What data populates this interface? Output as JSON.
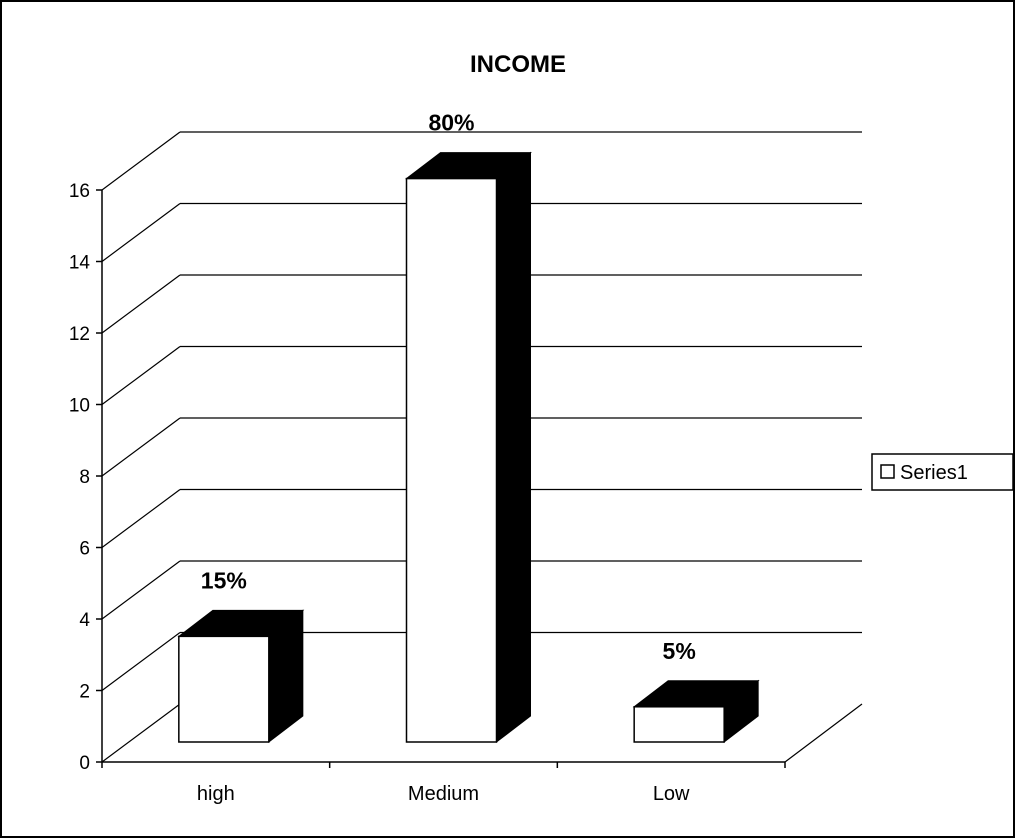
{
  "chart_data": {
    "type": "bar",
    "title": "INCOME",
    "categories": [
      "high",
      "Medium",
      "Low"
    ],
    "series": [
      {
        "name": "Series1",
        "values": [
          3,
          16,
          1
        ],
        "data_labels": [
          "15%",
          "80%",
          "5%"
        ]
      }
    ],
    "ylim": [
      0,
      16
    ],
    "y_ticks": [
      "0",
      "2",
      "4",
      "6",
      "8",
      "10",
      "12",
      "14",
      "16"
    ],
    "grid": true,
    "legend_position": "right",
    "colors": {
      "bar_face": "#ffffff",
      "bar_side": "#000000",
      "grid": "#000000"
    }
  }
}
